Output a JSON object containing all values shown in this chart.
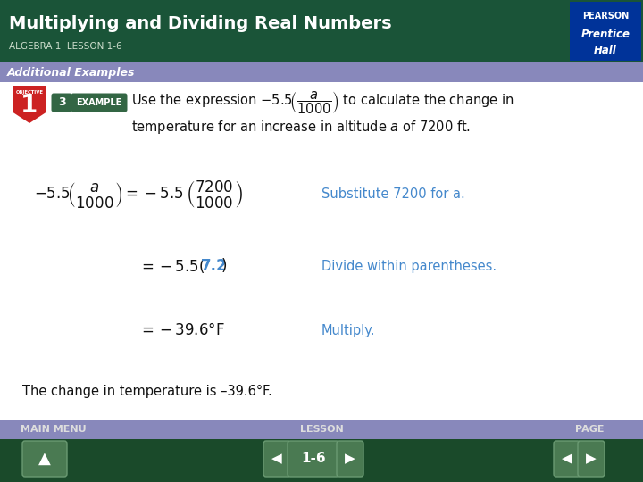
{
  "title": "Multiplying and Dividing Real Numbers",
  "subtitle": "ALGEBRA 1  LESSON 1-6",
  "additional_examples": "Additional Examples",
  "bg_header_color": "#1a5438",
  "bg_additional_color": "#8888bb",
  "bg_main_color": "#ffffff",
  "bg_footer_color": "#1a4a2a",
  "title_color": "#ffffff",
  "subtitle_color": "#ccddcc",
  "additional_color": "#ffffff",
  "main_text_color": "#111111",
  "blue_text_color": "#4488cc",
  "red_text_color": "#cc3333",
  "example_badge_color": "#336644",
  "objective_badge_color": "#cc2222",
  "footer_text_color": "#dddddd",
  "pearson_bg": "#003399",
  "eq1_note": "Substitute 7200 for a.",
  "eq2_note": "Divide within parentheses.",
  "eq3_note": "Multiply.",
  "conclusion": "The change in temperature is –39.6°F.",
  "footer_left": "MAIN MENU",
  "footer_center": "LESSON",
  "footer_page": "PAGE",
  "lesson_label": "1-6",
  "pearson_line1": "PEARSON",
  "pearson_line2": "Prentice",
  "pearson_line3": "Hall"
}
